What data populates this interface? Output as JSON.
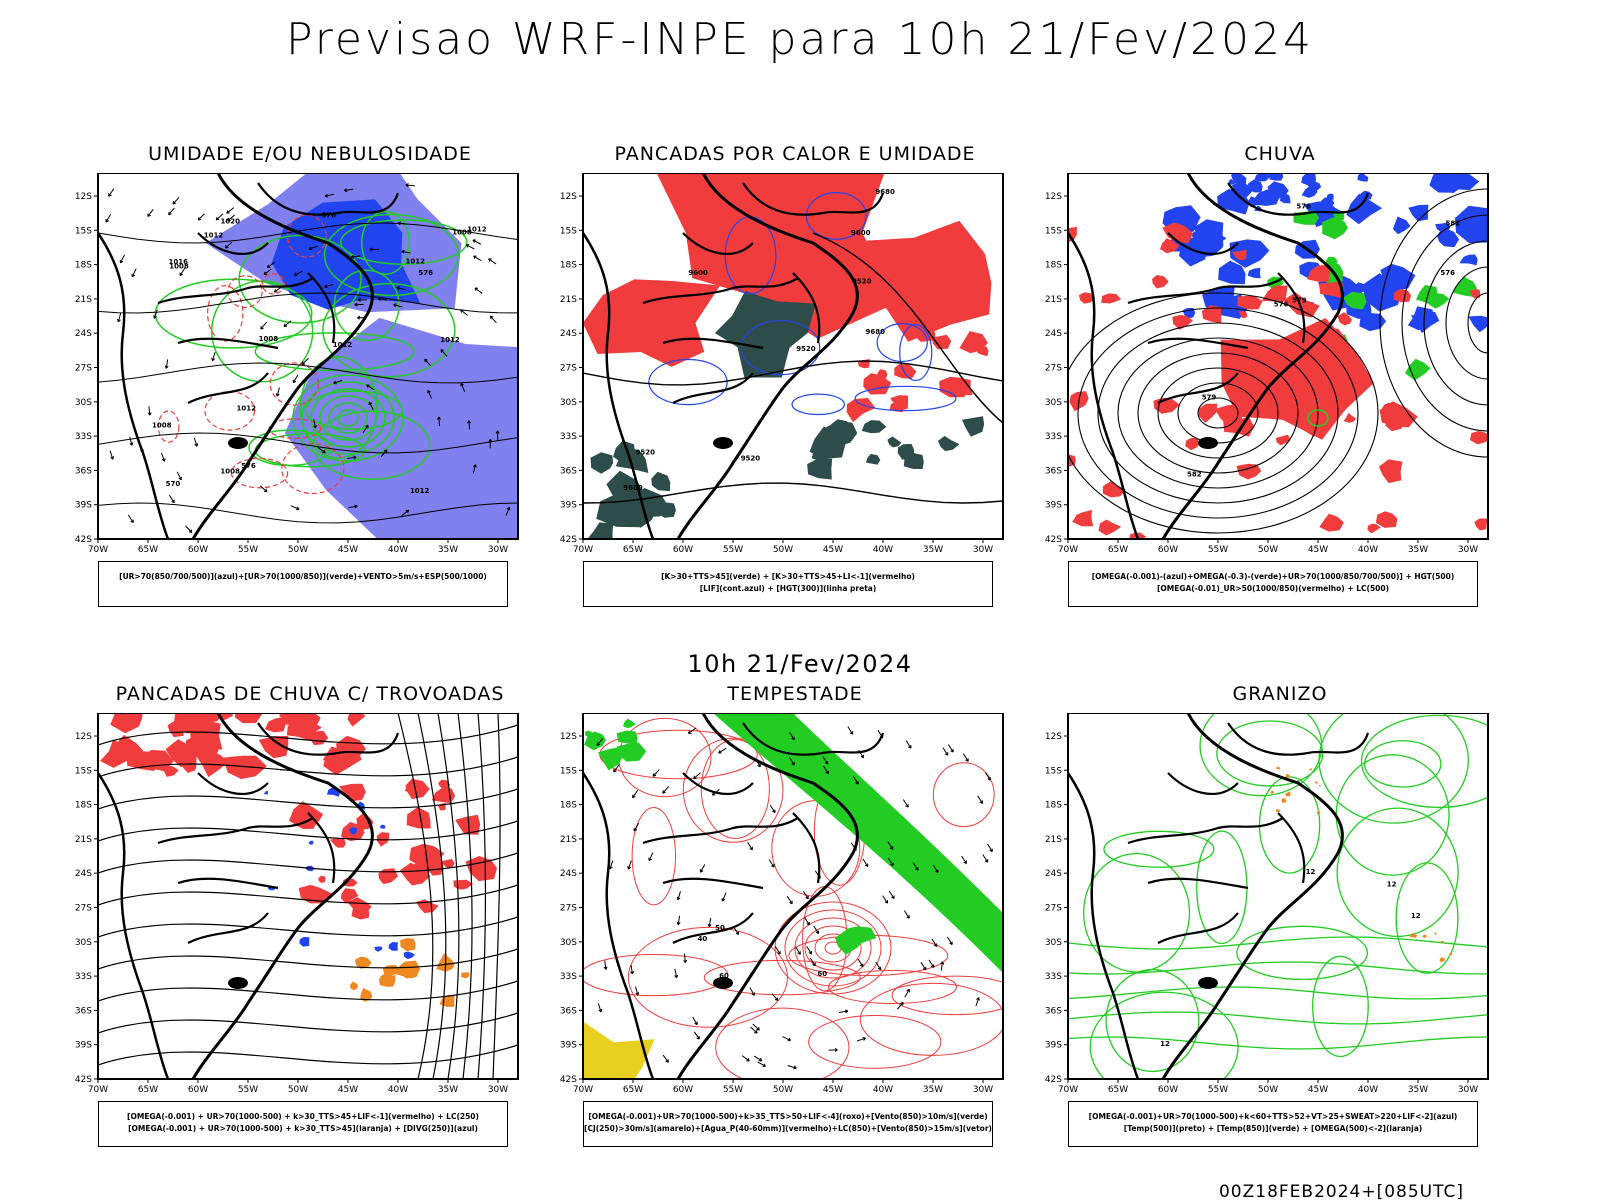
{
  "header": {
    "title": "Previsao WRF-INPE  para 10h 21/Fev/2024"
  },
  "middle": {
    "label": "10h 21/Fev/2024"
  },
  "footer": {
    "run": "00Z18FEB2024+[085UTC]"
  },
  "axes": {
    "lat_ticks": [
      "12S",
      "15S",
      "18S",
      "21S",
      "24S",
      "27S",
      "30S",
      "33S",
      "36S",
      "39S",
      "42S"
    ],
    "lon_ticks": [
      "70W",
      "65W",
      "60W",
      "55W",
      "50W",
      "45W",
      "40W",
      "35W",
      "30W"
    ]
  },
  "panels": [
    {
      "title": "UMIDADE E/OU NEBULOSIDADE",
      "legend": [
        "[UR>70(850/700/500)](azul)+[UR>70(1000/850)](verde)+VENTO>5m/s+ESP(500/1000)"
      ],
      "labels": [
        "1012",
        "1012",
        "1008",
        "1012",
        "1008",
        "1008",
        "1012",
        "1008",
        "1012",
        "1008",
        "1012",
        "1020",
        "1016",
        "1012",
        "576",
        "576",
        "570",
        "576"
      ]
    },
    {
      "title": "PANCADAS POR CALOR E UMIDADE",
      "legend": [
        "[K>30+TTS>45](verde) + [K>30+TTS>45+LI<-1](vermelho)",
        "[LIF](cont.azul) + [HGT(300)](linha preta)"
      ],
      "labels": [
        "9680",
        "9600",
        "9520",
        "9600",
        "9520",
        "9680",
        "9600",
        "9520",
        "9520"
      ]
    },
    {
      "title": "CHUVA",
      "legend": [
        "[OMEGA(-0.001)-(azul)+OMEGA(-0.3)-(verde)+UR>70(1000/850/700/500)] + HGT(500)",
        "[OMEGA(-0.01)_UR>50(1000/850)(vermelho) + LC(500)"
      ],
      "labels": [
        "582",
        "576",
        "582",
        "579",
        "576",
        "579",
        "576"
      ]
    },
    {
      "title": "PANCADAS DE CHUVA C/ TROVOADAS",
      "legend": [
        "[OMEGA(-0.001) + UR>70(1000-500) + k>30_TTS>45+LIF<-1](vermelho) + LC(250)",
        "[OMEGA(-0.001) + UR>70(1000-500) + k>30_TTS>45](laranja) + [DIVG(250)](azul)"
      ],
      "labels": []
    },
    {
      "title": "TEMPESTADE",
      "legend": [
        "[OMEGA(-0.001)+UR>70(1000-500)+k>35_TTS>50+LIF<-4](roxo)+[Vento(850)>10m/s](verde)",
        "[CJ(250)>30m/s](amarelo)+[Agua_P(40-60mm)](vermelho)+LC(850)+[Vento(850)>15m/s](vetor)"
      ],
      "labels": [
        "50",
        "40",
        "60",
        "60"
      ]
    },
    {
      "title": "GRANIZO",
      "legend": [
        "[OMEGA(-0.001)+UR>70(1000-500)+k<60+TTS>52+VT>25+SWEAT>220+LIF<-2](azul)",
        "[Temp(500)](preto) + [Temp(850)](verde) + [OMEGA(500)<-2](laranja)"
      ],
      "labels": [
        "12",
        "12",
        "12",
        "12"
      ]
    }
  ],
  "colors": {
    "red": "#f03c3c",
    "green": "#22cc22",
    "blue": "#2244ee",
    "lavender": "#8080ee",
    "darkteal": "#2e4d4a",
    "orange": "#ee8822",
    "yellow": "#e8d020"
  },
  "chart_data": [
    {
      "type": "map",
      "title": "UMIDADE E/OU NEBULOSIDADE",
      "lat_range": [
        "42S",
        "10S"
      ],
      "lon_range": [
        "70W",
        "28W"
      ]
    },
    {
      "type": "map",
      "title": "PANCADAS POR CALOR E UMIDADE",
      "lat_range": [
        "42S",
        "10S"
      ],
      "lon_range": [
        "70W",
        "28W"
      ]
    },
    {
      "type": "map",
      "title": "CHUVA",
      "lat_range": [
        "42S",
        "10S"
      ],
      "lon_range": [
        "70W",
        "28W"
      ]
    },
    {
      "type": "map",
      "title": "PANCADAS DE CHUVA C/ TROVOADAS",
      "lat_range": [
        "42S",
        "10S"
      ],
      "lon_range": [
        "70W",
        "28W"
      ]
    },
    {
      "type": "map",
      "title": "TEMPESTADE",
      "lat_range": [
        "42S",
        "10S"
      ],
      "lon_range": [
        "70W",
        "28W"
      ]
    },
    {
      "type": "map",
      "title": "GRANIZO",
      "lat_range": [
        "42S",
        "10S"
      ],
      "lon_range": [
        "70W",
        "28W"
      ]
    }
  ]
}
